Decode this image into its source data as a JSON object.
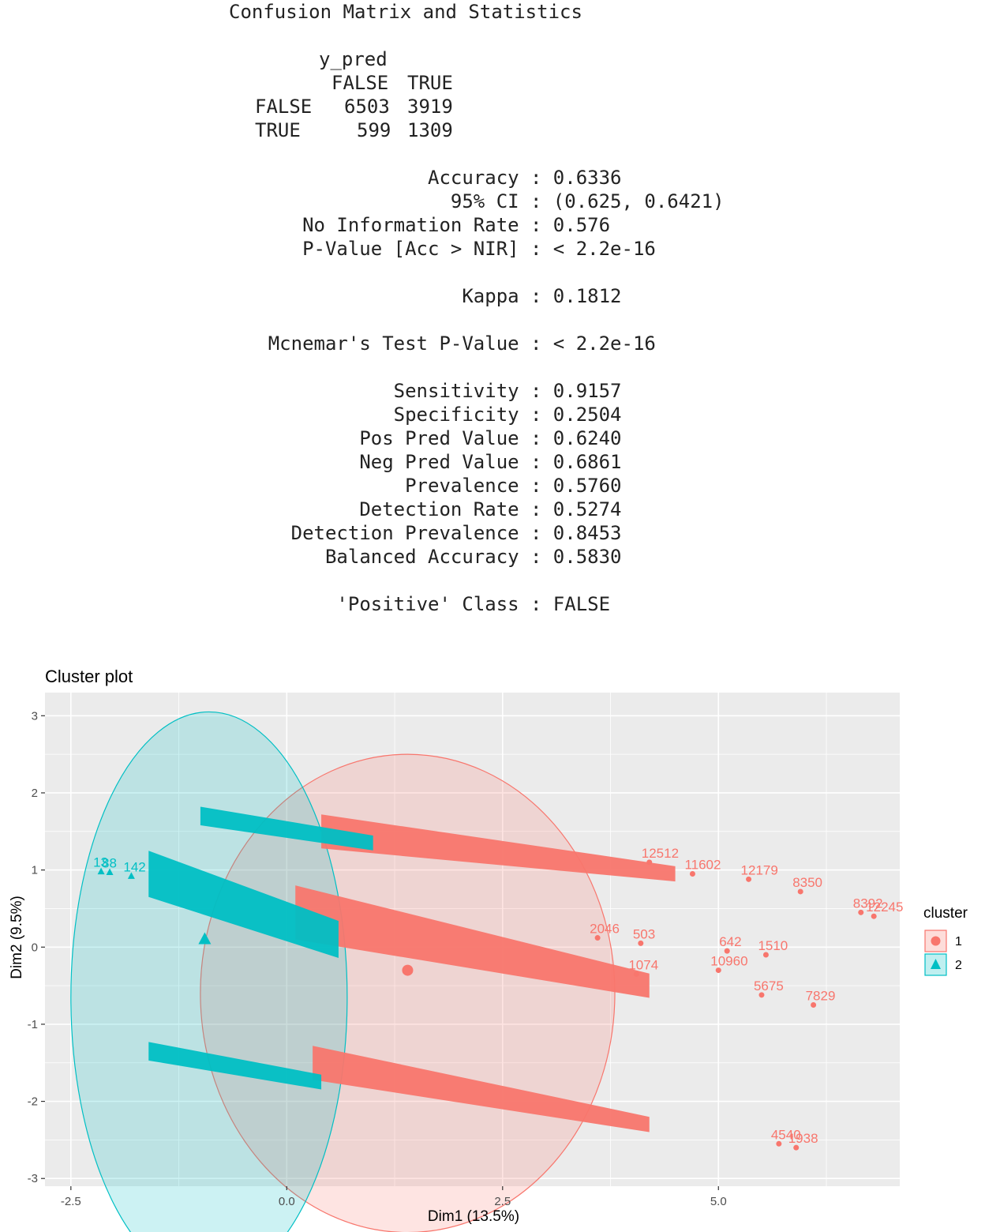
{
  "console": {
    "heading": "Confusion Matrix and Statistics",
    "matrix": {
      "row_var": "y_pred",
      "col_headers": [
        "FALSE",
        "TRUE"
      ],
      "rows": [
        {
          "label": "FALSE",
          "values": [
            "6503",
            "3919"
          ]
        },
        {
          "label": "TRUE",
          "values": [
            "599",
            "1309"
          ]
        }
      ]
    },
    "stats": [
      {
        "label": "Accuracy",
        "value": "0.6336"
      },
      {
        "label": "95% CI",
        "value": "(0.625, 0.6421)"
      },
      {
        "label": "No Information Rate",
        "value": "0.576"
      },
      {
        "label": "P-Value [Acc > NIR]",
        "value": "< 2.2e-16"
      },
      {
        "label": "Kappa",
        "value": "0.1812"
      },
      {
        "label": "Mcnemar's Test P-Value",
        "value": "< 2.2e-16"
      },
      {
        "label": "Sensitivity",
        "value": "0.9157"
      },
      {
        "label": "Specificity",
        "value": "0.2504"
      },
      {
        "label": "Pos Pred Value",
        "value": "0.6240"
      },
      {
        "label": "Neg Pred Value",
        "value": "0.6861"
      },
      {
        "label": "Prevalence",
        "value": "0.5760"
      },
      {
        "label": "Detection Rate",
        "value": "0.5274"
      },
      {
        "label": "Detection Prevalence",
        "value": "0.8453"
      },
      {
        "label": "Balanced Accuracy",
        "value": "0.5830"
      },
      {
        "label": "'Positive' Class",
        "value": "FALSE"
      }
    ]
  },
  "chart_data": {
    "type": "scatter",
    "title": "Cluster plot",
    "xlabel": "Dim1 (13.5%)",
    "ylabel": "Dim2 (9.5%)",
    "xlim": [
      -2.8,
      7.1
    ],
    "ylim": [
      -3.1,
      3.3
    ],
    "x_ticks": [
      -2.5,
      0.0,
      2.5,
      5.0
    ],
    "x_tick_labels": [
      "-2.5",
      "0.0",
      "2.5",
      "5.0"
    ],
    "y_ticks": [
      -3,
      -2,
      -1,
      0,
      1,
      2,
      3
    ],
    "y_tick_labels": [
      "-3",
      "-2",
      "-1",
      "0",
      "1",
      "2",
      "3"
    ],
    "grid": true,
    "legend": {
      "title": "cluster",
      "position": "right",
      "entries": [
        "1",
        "2"
      ]
    },
    "colors": {
      "cluster1": "#F8766D",
      "cluster2": "#00BFC4",
      "panel": "#EBEBEB"
    },
    "series": [
      {
        "name": "1",
        "marker": "circle",
        "ellipse": {
          "cx": 1.4,
          "cy": -0.6,
          "rx": 2.4,
          "ry": 3.1
        },
        "centroid": [
          1.4,
          -0.3
        ],
        "bands": [
          {
            "x_start": 0.4,
            "y_start": 1.5,
            "x_end": 4.5,
            "y_end": 0.95,
            "spread": 0.22
          },
          {
            "x_start": 0.1,
            "y_start": 0.45,
            "x_end": 4.2,
            "y_end": -0.5,
            "spread": 0.35
          },
          {
            "x_start": 0.3,
            "y_start": -1.5,
            "x_end": 4.2,
            "y_end": -2.3,
            "spread": 0.22
          }
        ],
        "outliers": [
          {
            "x": 4.2,
            "y": 1.1,
            "label": "12512"
          },
          {
            "x": 4.7,
            "y": 0.95,
            "label": "11602"
          },
          {
            "x": 5.35,
            "y": 0.88,
            "label": "12179"
          },
          {
            "x": 5.95,
            "y": 0.72,
            "label": "8350"
          },
          {
            "x": 6.65,
            "y": 0.45,
            "label": "8392"
          },
          {
            "x": 6.8,
            "y": 0.4,
            "label": "12245"
          },
          {
            "x": 4.1,
            "y": 0.05,
            "label": "503"
          },
          {
            "x": 3.6,
            "y": 0.12,
            "label": "2046"
          },
          {
            "x": 5.1,
            "y": -0.05,
            "label": "642"
          },
          {
            "x": 5.55,
            "y": -0.1,
            "label": "1510"
          },
          {
            "x": 5.0,
            "y": -0.3,
            "label": "10960"
          },
          {
            "x": 4.05,
            "y": -0.35,
            "label": "1074"
          },
          {
            "x": 5.5,
            "y": -0.62,
            "label": "5675"
          },
          {
            "x": 6.1,
            "y": -0.75,
            "label": "7829"
          },
          {
            "x": 5.7,
            "y": -2.55,
            "label": "4540"
          },
          {
            "x": 5.9,
            "y": -2.6,
            "label": "1938"
          }
        ]
      },
      {
        "name": "2",
        "marker": "triangle",
        "ellipse": {
          "cx": -0.9,
          "cy": -0.65,
          "rx": 1.6,
          "ry": 3.7
        },
        "centroid": [
          -0.95,
          0.1
        ],
        "bands": [
          {
            "x_start": -1.0,
            "y_start": 1.7,
            "x_end": 1.0,
            "y_end": 1.35,
            "spread": 0.12
          },
          {
            "x_start": -1.6,
            "y_start": 0.95,
            "x_end": 0.6,
            "y_end": 0.1,
            "spread": 0.3
          },
          {
            "x_start": -1.6,
            "y_start": -1.35,
            "x_end": 0.4,
            "y_end": -1.75,
            "spread": 0.12
          }
        ],
        "outliers": [
          {
            "x": -2.15,
            "y": 0.98,
            "label": "13"
          },
          {
            "x": -2.05,
            "y": 0.97,
            "label": "88"
          },
          {
            "x": -1.8,
            "y": 0.92,
            "label": "142"
          }
        ]
      }
    ]
  }
}
